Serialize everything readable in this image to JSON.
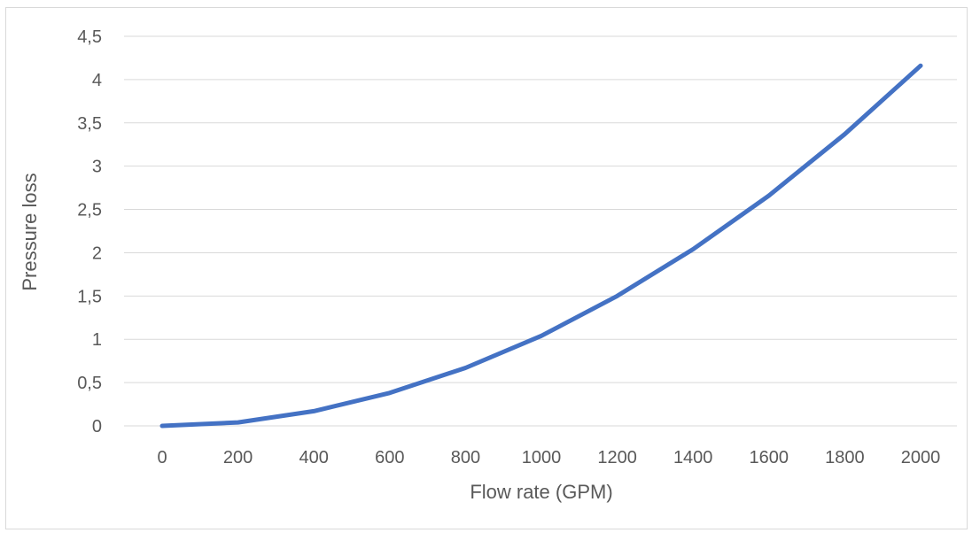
{
  "chart_data": {
    "type": "line",
    "title": "",
    "xlabel": "Flow rate (GPM)",
    "ylabel": "Pressure loss",
    "x": [
      0,
      200,
      400,
      600,
      800,
      1000,
      1200,
      1400,
      1600,
      1800,
      2000
    ],
    "x_tick_labels": [
      "0",
      "200",
      "400",
      "600",
      "800",
      "1000",
      "1200",
      "1400",
      "1600",
      "1800",
      "2000"
    ],
    "y_ticks": [
      0,
      0.5,
      1,
      1.5,
      2,
      2.5,
      3,
      3.5,
      4,
      4.5
    ],
    "y_tick_labels": [
      "0",
      "0,5",
      "1",
      "1,5",
      "2",
      "2,5",
      "3",
      "3,5",
      "4",
      "4,5"
    ],
    "ylim": [
      0,
      4.5
    ],
    "grid": true,
    "series": [
      {
        "values": [
          0.0,
          0.04,
          0.17,
          0.38,
          0.67,
          1.04,
          1.5,
          2.04,
          2.66,
          3.37,
          4.16
        ],
        "color": "#4472c4"
      }
    ]
  }
}
